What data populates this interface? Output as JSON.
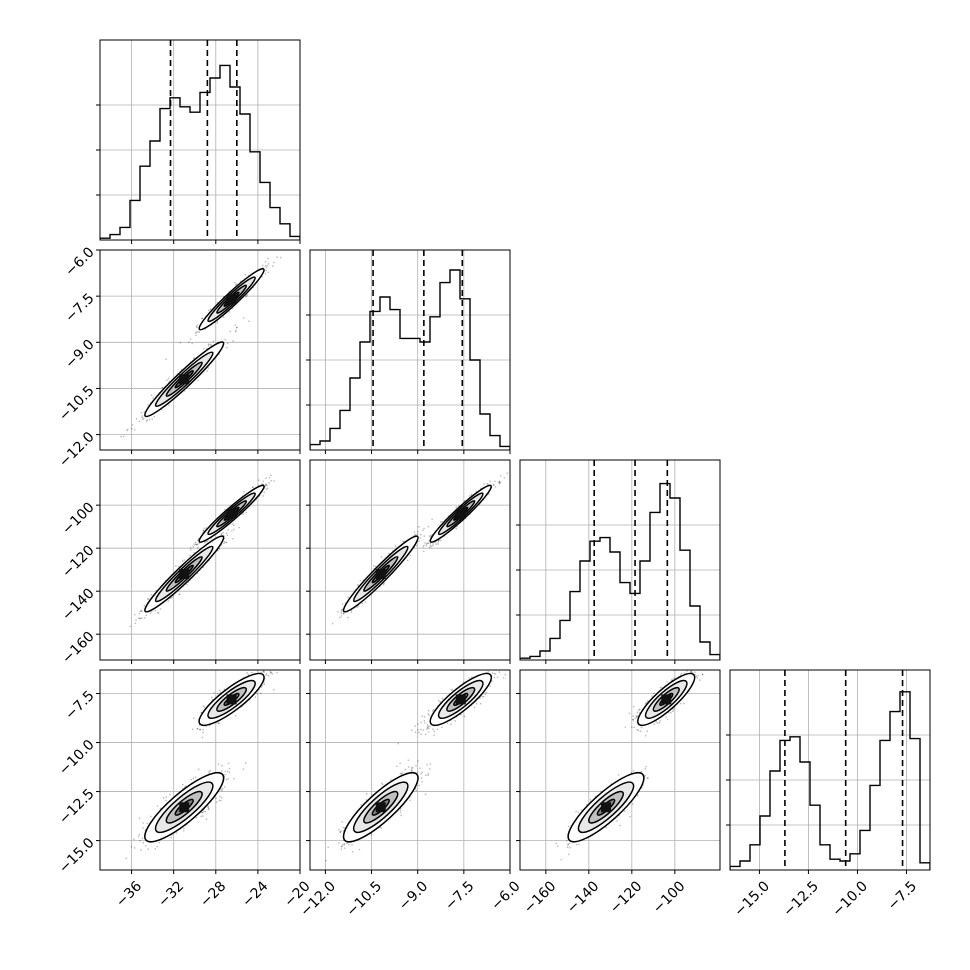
{
  "chart_data": {
    "type": "corner",
    "title": "",
    "n_params": 4,
    "params": [
      {
        "label": "",
        "range": [
          -39,
          -20
        ],
        "ticks": [
          -36,
          -32,
          -28,
          -24,
          -20
        ],
        "tick_labels": [
          "−36",
          "−32",
          "−28",
          "−24",
          "−20"
        ],
        "quantiles": [
          -32.3,
          -28.8,
          -26.0
        ],
        "modes": [
          -31.0,
          -26.5
        ],
        "weights": [
          0.5,
          0.5
        ],
        "sigmas": [
          1.7,
          1.4
        ]
      },
      {
        "label": "",
        "range": [
          -12.5,
          -6.0
        ],
        "ticks": [
          -12.0,
          -10.5,
          -9.0,
          -7.5,
          -6.0
        ],
        "tick_labels": [
          "−12.0",
          "−10.5",
          "−9.0",
          "−7.5",
          "−6.0"
        ],
        "quantiles": [
          -10.45,
          -8.8,
          -7.55
        ],
        "modes": [
          -10.2,
          -7.6
        ],
        "weights": [
          0.45,
          0.55
        ],
        "sigmas": [
          0.55,
          0.45
        ]
      },
      {
        "label": "",
        "range": [
          -172,
          -79
        ],
        "ticks": [
          -160,
          -140,
          -120,
          -100
        ],
        "tick_labels": [
          "−160",
          "−140",
          "−120",
          "−100"
        ],
        "quantiles": [
          -137.5,
          -118.5,
          -103.5
        ],
        "modes": [
          -132,
          -104
        ],
        "weights": [
          0.45,
          0.55
        ],
        "sigmas": [
          8,
          6
        ]
      },
      {
        "label": "",
        "range": [
          -16.5,
          -6.3
        ],
        "ticks": [
          -15.0,
          -12.5,
          -10.0,
          -7.5
        ],
        "tick_labels": [
          "−15.0",
          "−12.5",
          "−10.0",
          "−7.5"
        ],
        "quantiles": [
          -13.7,
          -10.6,
          -7.7
        ],
        "modes": [
          -13.3,
          -7.8
        ],
        "weights": [
          0.5,
          0.5
        ],
        "sigmas": [
          0.8,
          0.6
        ]
      }
    ],
    "histograms": [
      {
        "param": 0,
        "bins": 20,
        "counts": [
          0.01,
          0.03,
          0.07,
          0.22,
          0.41,
          0.55,
          0.73,
          0.79,
          0.74,
          0.71,
          0.82,
          0.9,
          0.97,
          0.85,
          0.7,
          0.49,
          0.32,
          0.18,
          0.09,
          0.02
        ]
      },
      {
        "param": 1,
        "bins": 20,
        "counts": [
          0.03,
          0.05,
          0.12,
          0.22,
          0.4,
          0.6,
          0.77,
          0.85,
          0.78,
          0.62,
          0.62,
          0.6,
          0.74,
          0.93,
          1.0,
          0.84,
          0.5,
          0.2,
          0.08,
          0.02
        ]
      },
      {
        "param": 2,
        "bins": 20,
        "counts": [
          0.01,
          0.02,
          0.05,
          0.12,
          0.22,
          0.38,
          0.55,
          0.66,
          0.68,
          0.6,
          0.43,
          0.37,
          0.55,
          0.82,
          0.98,
          0.9,
          0.61,
          0.3,
          0.1,
          0.03
        ]
      },
      {
        "param": 3,
        "bins": 20,
        "counts": [
          0.02,
          0.05,
          0.14,
          0.3,
          0.55,
          0.72,
          0.74,
          0.6,
          0.36,
          0.14,
          0.06,
          0.05,
          0.09,
          0.22,
          0.47,
          0.72,
          0.88,
          0.99,
          0.73,
          0.04
        ]
      }
    ],
    "pairs": [
      {
        "x_param": 0,
        "y_param": 1,
        "correlation": 0.96
      },
      {
        "x_param": 0,
        "y_param": 2,
        "correlation": 0.96
      },
      {
        "x_param": 1,
        "y_param": 2,
        "correlation": 0.96
      },
      {
        "x_param": 0,
        "y_param": 3,
        "correlation": 0.85
      },
      {
        "x_param": 1,
        "y_param": 3,
        "correlation": 0.85
      },
      {
        "x_param": 2,
        "y_param": 3,
        "correlation": 0.85
      }
    ],
    "grid": true,
    "quantile_levels": [
      0.16,
      0.5,
      0.84
    ],
    "colors": {
      "line": "#000000",
      "grid": "#b0b0b0",
      "points": "#000000"
    }
  }
}
